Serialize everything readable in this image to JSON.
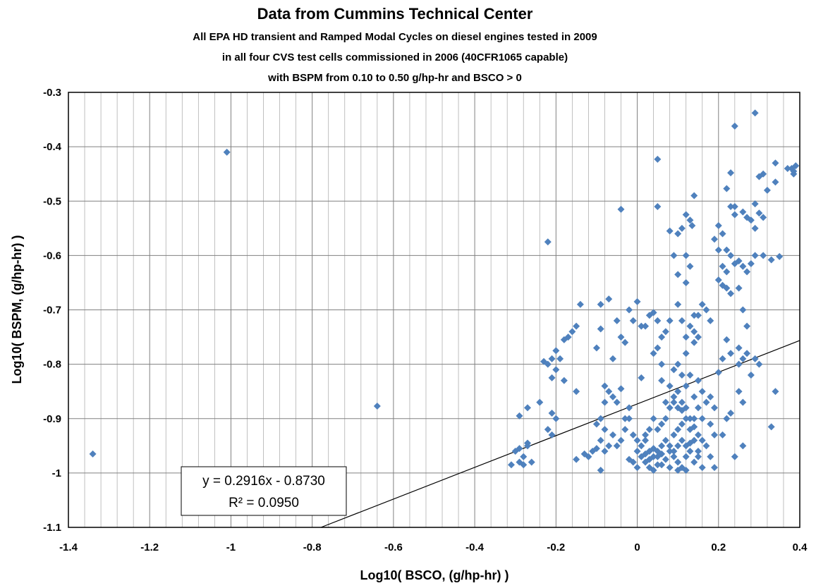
{
  "chart_data": {
    "type": "scatter",
    "title": "Data from Cummins Technical Center",
    "subtitle_lines": [
      "All EPA HD transient and Ramped Modal Cycles on diesel engines tested in 2009",
      "in all four CVS test cells commissioned in 2006 (40CFR1065 capable)",
      "with BSPM from 0.10 to 0.50 g/hp-hr and BSCO > 0"
    ],
    "xlabel": "Log10( BSCO, (g/hp-hr) )",
    "ylabel": "Log10( BSPM, (g/hp-hr) )",
    "xlim": [
      -1.4,
      0.4
    ],
    "ylim": [
      -1.1,
      -0.3
    ],
    "x_major_step": 0.2,
    "x_minor_step": 0.04,
    "y_major_step": 0.1,
    "x_tick_labels": [
      "-1.4",
      "-1.2",
      "-1",
      "-0.8",
      "-0.6",
      "-0.4",
      "-0.2",
      "0",
      "0.2",
      "0.4"
    ],
    "y_tick_labels": [
      "-0.3",
      "-0.4",
      "-0.5",
      "-0.6",
      "-0.7",
      "-0.8",
      "-0.9",
      "-1",
      "-1.1"
    ],
    "grid": true,
    "marker_color": "#4F81BD",
    "trendline": {
      "slope": 0.2916,
      "intercept": -0.873,
      "equation": "y = 0.2916x - 0.8730",
      "r_squared": "R² = 0.0950",
      "color": "#000000"
    },
    "points": [
      [
        -1.34,
        -0.965
      ],
      [
        -1.01,
        -0.41
      ],
      [
        -0.64,
        -0.877
      ],
      [
        0.05,
        -0.423
      ],
      [
        0.24,
        -0.362
      ],
      [
        0.29,
        -0.338
      ],
      [
        0.38,
        -0.44
      ],
      [
        0.39,
        -0.435
      ],
      [
        0.385,
        -0.445
      ],
      [
        0.34,
        -0.43
      ],
      [
        0.3,
        -0.455
      ],
      [
        0.31,
        -0.45
      ],
      [
        0.34,
        -0.465
      ],
      [
        0.32,
        -0.48
      ],
      [
        0.35,
        -0.602
      ],
      [
        0.33,
        -0.608
      ],
      [
        0.37,
        -0.44
      ],
      [
        0.385,
        -0.45
      ],
      [
        0.23,
        -0.448
      ],
      [
        0.22,
        -0.477
      ],
      [
        0.24,
        -0.51
      ],
      [
        0.26,
        -0.52
      ],
      [
        0.27,
        -0.53
      ],
      [
        0.29,
        -0.505
      ],
      [
        0.3,
        -0.522
      ],
      [
        0.28,
        -0.535
      ],
      [
        0.31,
        -0.53
      ],
      [
        0.29,
        -0.55
      ],
      [
        0.23,
        -0.51
      ],
      [
        0.24,
        -0.525
      ],
      [
        0.2,
        -0.545
      ],
      [
        0.21,
        -0.56
      ],
      [
        0.19,
        -0.57
      ],
      [
        0.2,
        -0.59
      ],
      [
        0.22,
        -0.59
      ],
      [
        0.23,
        -0.6
      ],
      [
        0.24,
        -0.615
      ],
      [
        0.21,
        -0.62
      ],
      [
        0.22,
        -0.63
      ],
      [
        0.25,
        -0.61
      ],
      [
        0.26,
        -0.62
      ],
      [
        0.27,
        -0.63
      ],
      [
        0.29,
        -0.6
      ],
      [
        0.31,
        -0.6
      ],
      [
        0.28,
        -0.615
      ],
      [
        0.25,
        -0.66
      ],
      [
        0.22,
        -0.66
      ],
      [
        0.21,
        -0.655
      ],
      [
        0.2,
        -0.645
      ],
      [
        0.23,
        -0.67
      ],
      [
        0.26,
        -0.7
      ],
      [
        0.27,
        -0.73
      ],
      [
        0.27,
        -0.78
      ],
      [
        0.25,
        -0.77
      ],
      [
        0.25,
        -0.8
      ],
      [
        0.26,
        -0.79
      ],
      [
        0.29,
        -0.79
      ],
      [
        0.3,
        -0.8
      ],
      [
        0.28,
        -0.82
      ],
      [
        0.34,
        -0.85
      ],
      [
        0.25,
        -0.85
      ],
      [
        0.26,
        -0.87
      ],
      [
        0.23,
        -0.89
      ],
      [
        0.22,
        -0.9
      ],
      [
        0.21,
        -0.93
      ],
      [
        0.24,
        -0.97
      ],
      [
        0.26,
        -0.95
      ],
      [
        0.33,
        -0.915
      ],
      [
        0.2,
        -0.815
      ],
      [
        0.21,
        -0.79
      ],
      [
        0.22,
        -0.755
      ],
      [
        0.23,
        -0.78
      ],
      [
        0.18,
        -0.72
      ],
      [
        0.16,
        -0.69
      ],
      [
        0.17,
        -0.7
      ],
      [
        0.15,
        -0.71
      ],
      [
        0.14,
        -0.74
      ],
      [
        0.12,
        -0.75
      ],
      [
        0.14,
        -0.49
      ],
      [
        0.12,
        -0.525
      ],
      [
        0.13,
        -0.535
      ],
      [
        0.135,
        -0.545
      ],
      [
        0.11,
        -0.55
      ],
      [
        0.1,
        -0.56
      ],
      [
        0.08,
        -0.555
      ],
      [
        0.09,
        -0.6
      ],
      [
        0.12,
        -0.6
      ],
      [
        0.13,
        -0.62
      ],
      [
        0.12,
        -0.65
      ],
      [
        0.1,
        -0.635
      ],
      [
        0.1,
        -0.69
      ],
      [
        0.11,
        -0.72
      ],
      [
        0.13,
        -0.73
      ],
      [
        0.14,
        -0.71
      ],
      [
        0.15,
        -0.75
      ],
      [
        0.12,
        -0.78
      ],
      [
        0.14,
        -0.76
      ],
      [
        0.1,
        -0.8
      ],
      [
        0.09,
        -0.81
      ],
      [
        0.11,
        -0.82
      ],
      [
        0.13,
        -0.82
      ],
      [
        0.15,
        -0.83
      ],
      [
        0.16,
        -0.85
      ],
      [
        0.12,
        -0.84
      ],
      [
        0.14,
        -0.86
      ],
      [
        0.1,
        -0.85
      ],
      [
        0.09,
        -0.87
      ],
      [
        0.12,
        -0.88
      ],
      [
        0.15,
        -0.88
      ],
      [
        0.17,
        -0.87
      ],
      [
        0.18,
        -0.86
      ],
      [
        0.19,
        -0.88
      ],
      [
        0.16,
        -0.9
      ],
      [
        0.18,
        -0.91
      ],
      [
        0.19,
        -0.93
      ],
      [
        0.17,
        -0.95
      ],
      [
        0.15,
        -0.97
      ],
      [
        0.19,
        -0.99
      ],
      [
        0.18,
        -0.97
      ],
      [
        0.16,
        -0.99
      ],
      [
        0.08,
        -0.72
      ],
      [
        0.07,
        -0.74
      ],
      [
        0.06,
        -0.75
      ],
      [
        0.05,
        -0.77
      ],
      [
        0.04,
        -0.78
      ],
      [
        0.06,
        -0.8
      ],
      [
        0.03,
        -0.71
      ],
      [
        0.04,
        -0.705
      ],
      [
        0.05,
        -0.72
      ],
      [
        0.0,
        -0.685
      ],
      [
        0.01,
        -0.73
      ],
      [
        -0.02,
        -0.7
      ],
      [
        -0.01,
        -0.72
      ],
      [
        0.02,
        -0.73
      ],
      [
        0.05,
        -0.51
      ],
      [
        -0.04,
        -0.515
      ],
      [
        -0.22,
        -0.575
      ],
      [
        -0.14,
        -0.69
      ],
      [
        -0.15,
        -0.73
      ],
      [
        -0.16,
        -0.74
      ],
      [
        -0.17,
        -0.75
      ],
      [
        -0.18,
        -0.755
      ],
      [
        -0.2,
        -0.775
      ],
      [
        -0.19,
        -0.79
      ],
      [
        -0.21,
        -0.79
      ],
      [
        -0.22,
        -0.8
      ],
      [
        -0.23,
        -0.795
      ],
      [
        -0.2,
        -0.81
      ],
      [
        -0.21,
        -0.825
      ],
      [
        -0.18,
        -0.83
      ],
      [
        -0.15,
        -0.85
      ],
      [
        -0.24,
        -0.87
      ],
      [
        -0.21,
        -0.89
      ],
      [
        -0.2,
        -0.9
      ],
      [
        -0.22,
        -0.92
      ],
      [
        -0.21,
        -0.93
      ],
      [
        -0.27,
        -0.88
      ],
      [
        -0.29,
        -0.895
      ],
      [
        -0.27,
        -0.945
      ],
      [
        -0.29,
        -0.955
      ],
      [
        -0.3,
        -0.96
      ],
      [
        -0.31,
        -0.985
      ],
      [
        -0.29,
        -0.98
      ],
      [
        -0.28,
        -0.97
      ],
      [
        -0.26,
        -0.98
      ],
      [
        -0.28,
        -0.985
      ],
      [
        -0.27,
        -0.95
      ],
      [
        -0.09,
        -0.69
      ],
      [
        -0.07,
        -0.68
      ],
      [
        -0.05,
        -0.72
      ],
      [
        -0.04,
        -0.75
      ],
      [
        -0.03,
        -0.76
      ],
      [
        -0.06,
        -0.79
      ],
      [
        -0.09,
        -0.735
      ],
      [
        -0.1,
        -0.77
      ],
      [
        -0.08,
        -0.84
      ],
      [
        -0.07,
        -0.85
      ],
      [
        -0.06,
        -0.86
      ],
      [
        -0.08,
        -0.87
      ],
      [
        -0.09,
        -0.9
      ],
      [
        -0.1,
        -0.91
      ],
      [
        -0.08,
        -0.92
      ],
      [
        -0.06,
        -0.93
      ],
      [
        -0.04,
        -0.94
      ],
      [
        -0.03,
        -0.92
      ],
      [
        -0.02,
        -0.9
      ],
      [
        -0.05,
        -0.95
      ],
      [
        -0.07,
        -0.95
      ],
      [
        -0.09,
        -0.94
      ],
      [
        -0.1,
        -0.955
      ],
      [
        -0.12,
        -0.97
      ],
      [
        -0.13,
        -0.965
      ],
      [
        -0.15,
        -0.975
      ],
      [
        -0.11,
        -0.96
      ],
      [
        -0.09,
        -0.995
      ],
      [
        -0.08,
        -0.96
      ],
      [
        -0.04,
        -0.845
      ],
      [
        -0.02,
        -0.88
      ],
      [
        0.01,
        -0.825
      ],
      [
        -0.05,
        -0.87
      ],
      [
        -0.03,
        -0.9
      ],
      [
        -0.01,
        -0.93
      ],
      [
        0.0,
        -0.96
      ],
      [
        0.01,
        -0.97
      ],
      [
        0.02,
        -0.98
      ],
      [
        0.03,
        -0.99
      ],
      [
        0.04,
        -0.995
      ],
      [
        0.05,
        -0.985
      ],
      [
        0.0,
        -0.99
      ],
      [
        -0.01,
        -0.98
      ],
      [
        -0.02,
        -0.975
      ],
      [
        0.01,
        -0.95
      ],
      [
        0.02,
        -0.94
      ],
      [
        0.03,
        -0.96
      ],
      [
        0.04,
        -0.97
      ],
      [
        0.05,
        -0.96
      ],
      [
        0.06,
        -0.95
      ],
      [
        0.07,
        -0.94
      ],
      [
        0.08,
        -0.96
      ],
      [
        0.09,
        -0.97
      ],
      [
        0.1,
        -0.98
      ],
      [
        0.11,
        -0.99
      ],
      [
        0.12,
        -0.97
      ],
      [
        0.13,
        -0.96
      ],
      [
        0.14,
        -0.98
      ],
      [
        0.12,
        -0.995
      ],
      [
        0.1,
        -0.995
      ],
      [
        0.08,
        -0.99
      ],
      [
        0.06,
        -0.985
      ],
      [
        0.07,
        -0.975
      ],
      [
        0.05,
        -0.97
      ],
      [
        0.03,
        -0.975
      ],
      [
        0.02,
        -0.965
      ],
      [
        0.04,
        -0.955
      ],
      [
        0.06,
        -0.965
      ],
      [
        0.08,
        -0.95
      ],
      [
        0.09,
        -0.93
      ],
      [
        0.1,
        -0.92
      ],
      [
        0.11,
        -0.91
      ],
      [
        0.12,
        -0.9
      ],
      [
        0.13,
        -0.92
      ],
      [
        0.14,
        -0.94
      ],
      [
        0.15,
        -0.93
      ],
      [
        0.11,
        -0.94
      ],
      [
        0.1,
        -0.95
      ],
      [
        0.09,
        -0.96
      ],
      [
        0.12,
        -0.95
      ],
      [
        0.13,
        -0.945
      ],
      [
        0.05,
        -0.92
      ],
      [
        0.06,
        -0.91
      ],
      [
        0.07,
        -0.9
      ],
      [
        0.08,
        -0.88
      ],
      [
        0.04,
        -0.9
      ],
      [
        0.03,
        -0.92
      ],
      [
        0.02,
        -0.93
      ],
      [
        0.0,
        -0.94
      ],
      [
        0.07,
        -0.87
      ],
      [
        0.09,
        -0.86
      ],
      [
        0.11,
        -0.87
      ],
      [
        0.06,
        -0.83
      ],
      [
        0.08,
        -0.84
      ],
      [
        0.15,
        -0.96
      ],
      [
        0.16,
        -0.94
      ],
      [
        0.14,
        -0.915
      ],
      [
        0.13,
        -0.9
      ],
      [
        0.11,
        -0.885
      ],
      [
        0.1,
        -0.88
      ],
      [
        0.14,
        -0.9
      ]
    ]
  }
}
